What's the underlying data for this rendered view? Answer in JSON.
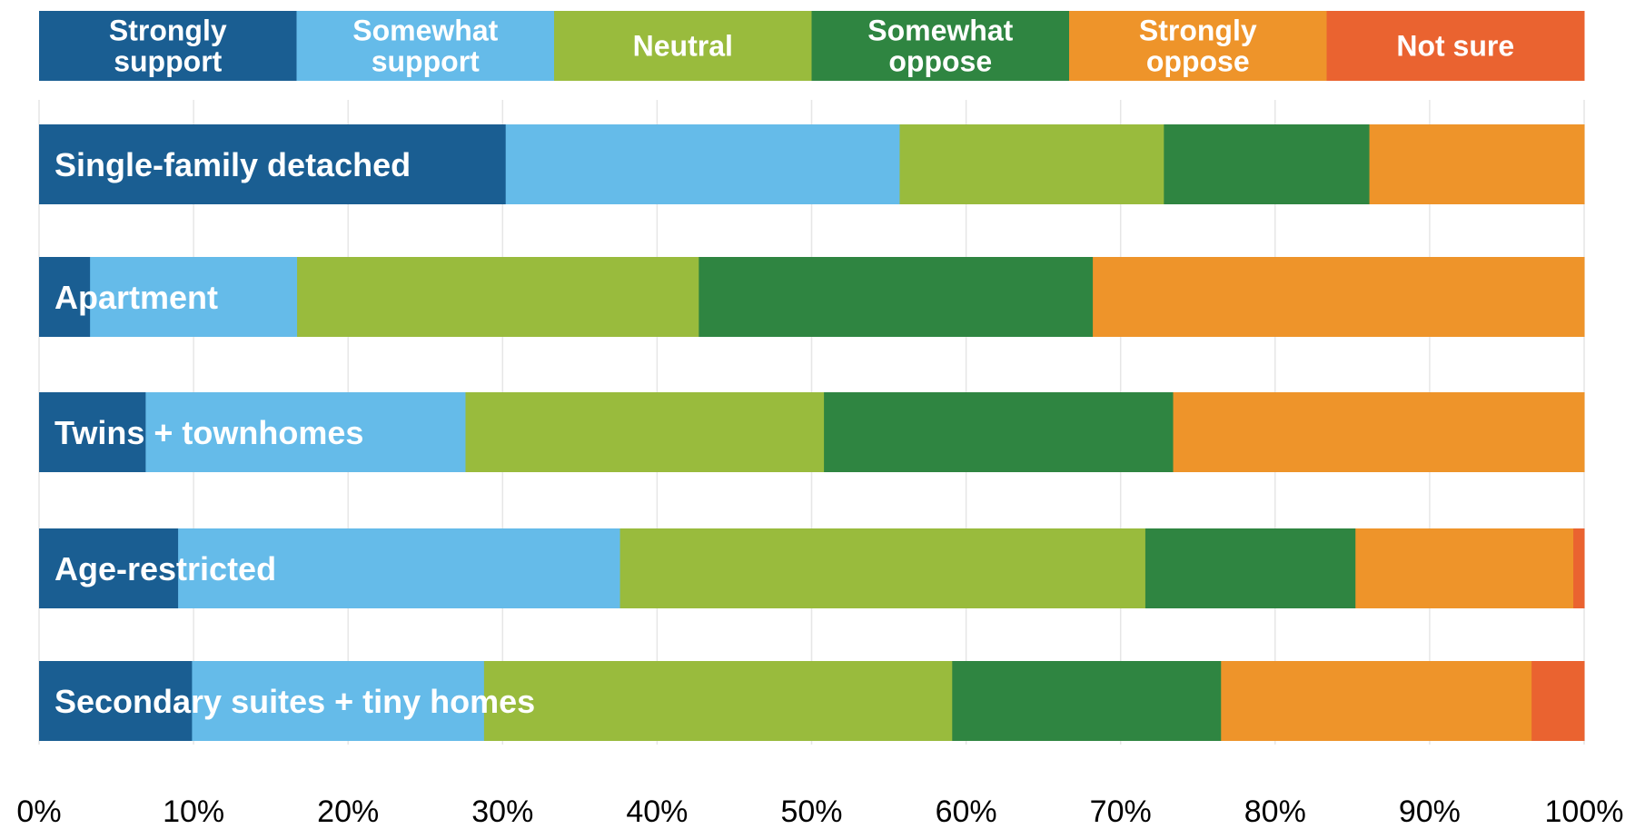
{
  "chart_data": {
    "type": "bar",
    "orientation": "horizontal",
    "stacked": true,
    "title": "",
    "xlabel": "",
    "ylabel": "",
    "xlim": [
      0,
      100
    ],
    "grid": true,
    "legend_placement": "top",
    "x_ticks": [
      "0%",
      "10%",
      "20%",
      "30%",
      "40%",
      "50%",
      "60%",
      "70%",
      "80%",
      "90%",
      "100%"
    ],
    "categories": [
      "Single-family detached",
      "Apartment",
      "Twins + townhomes",
      "Age-restricted",
      "Secondary suites + tiny homes"
    ],
    "series": [
      {
        "name": "Strongly support",
        "legend_lines": [
          "Strongly",
          "support"
        ],
        "color": "#1a5e92",
        "values": [
          30.2,
          3.3,
          6.9,
          9.0,
          9.9
        ]
      },
      {
        "name": "Somewhat support",
        "legend_lines": [
          "Somewhat",
          "support"
        ],
        "color": "#65bbe9",
        "values": [
          25.5,
          13.4,
          20.7,
          28.6,
          18.9
        ]
      },
      {
        "name": "Neutral",
        "legend_lines": [
          "Neutral"
        ],
        "color": "#99bb3d",
        "values": [
          17.1,
          26.0,
          23.2,
          34.0,
          30.3
        ]
      },
      {
        "name": "Somewhat oppose",
        "legend_lines": [
          "Somewhat",
          "oppose"
        ],
        "color": "#2f8541",
        "values": [
          13.3,
          25.5,
          22.6,
          13.6,
          17.4
        ]
      },
      {
        "name": "Strongly oppose",
        "legend_lines": [
          "Strongly",
          "oppose"
        ],
        "color": "#ee942a",
        "values": [
          13.9,
          31.8,
          26.6,
          14.1,
          20.1
        ]
      },
      {
        "name": "Not sure",
        "legend_lines": [
          "Not sure"
        ],
        "color": "#ea6330",
        "values": [
          0,
          0,
          0,
          0.7,
          3.4
        ]
      }
    ]
  }
}
